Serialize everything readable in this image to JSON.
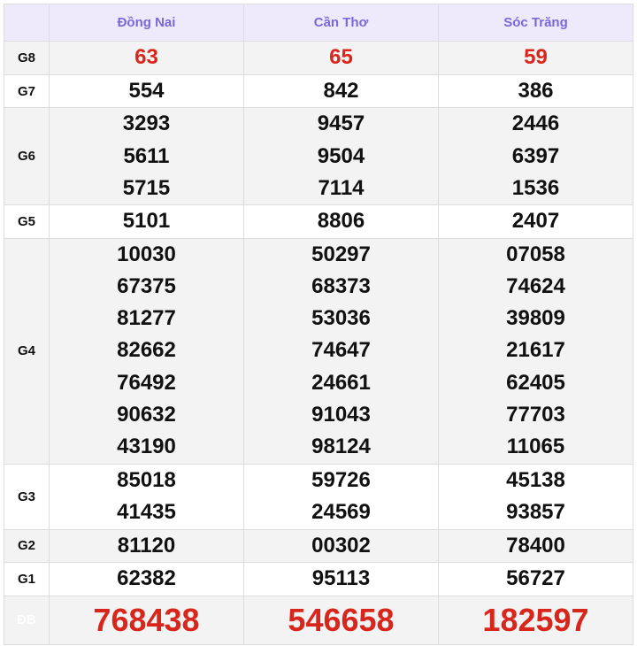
{
  "provinces": [
    "Đồng Nai",
    "Cần Thơ",
    "Sóc Trăng"
  ],
  "prizes": [
    {
      "label": "G8",
      "values": [
        [
          "63"
        ],
        [
          "65"
        ],
        [
          "59"
        ]
      ]
    },
    {
      "label": "G7",
      "values": [
        [
          "554"
        ],
        [
          "842"
        ],
        [
          "386"
        ]
      ]
    },
    {
      "label": "G6",
      "values": [
        [
          "3293",
          "5611",
          "5715"
        ],
        [
          "9457",
          "9504",
          "7114"
        ],
        [
          "2446",
          "6397",
          "1536"
        ]
      ]
    },
    {
      "label": "G5",
      "values": [
        [
          "5101"
        ],
        [
          "8806"
        ],
        [
          "2407"
        ]
      ]
    },
    {
      "label": "G4",
      "values": [
        [
          "10030",
          "67375",
          "81277",
          "82662",
          "76492",
          "90632",
          "43190"
        ],
        [
          "50297",
          "68373",
          "53036",
          "74647",
          "24661",
          "91043",
          "98124"
        ],
        [
          "07058",
          "74624",
          "39809",
          "21617",
          "62405",
          "77703",
          "11065"
        ]
      ]
    },
    {
      "label": "G3",
      "values": [
        [
          "85018",
          "41435"
        ],
        [
          "59726",
          "24569"
        ],
        [
          "45138",
          "93857"
        ]
      ]
    },
    {
      "label": "G2",
      "values": [
        [
          "81120"
        ],
        [
          "00302"
        ],
        [
          "78400"
        ]
      ]
    },
    {
      "label": "G1",
      "values": [
        [
          "62382"
        ],
        [
          "95113"
        ],
        [
          "56727"
        ]
      ]
    },
    {
      "label": "ĐB",
      "values": [
        [
          "768438"
        ],
        [
          "546658"
        ],
        [
          "182597"
        ]
      ]
    }
  ],
  "colors": {
    "header_text": "#7b68d8",
    "header_bg": "#eeeafc",
    "highlight": "#d9261c"
  }
}
